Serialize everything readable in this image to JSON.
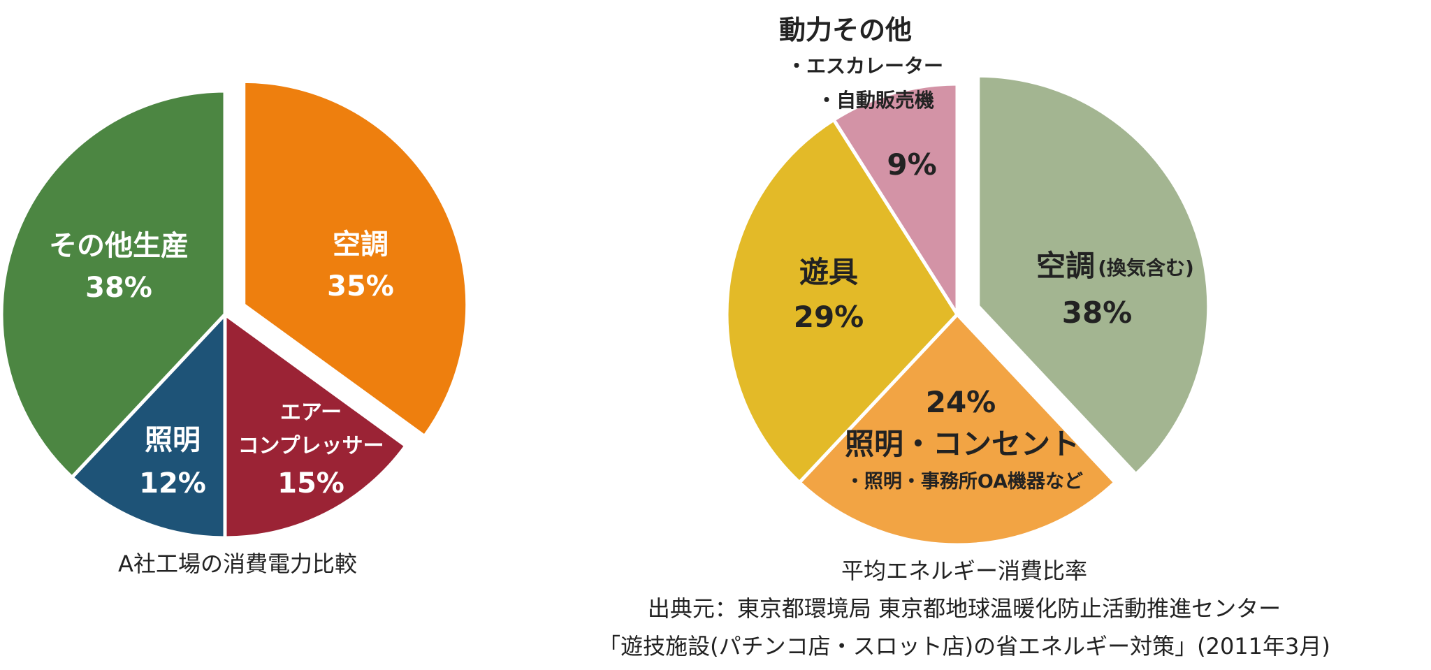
{
  "chart_data": [
    {
      "type": "pie",
      "caption": "A社工場の消費電力比較",
      "slices": [
        {
          "label": "空調",
          "value": 35,
          "value_text": "35%",
          "color": "#EE7F0E"
        },
        {
          "label": "エアー\nコンプレッサー",
          "value": 15,
          "value_text": "15%",
          "color": "#9B2335"
        },
        {
          "label": "照明",
          "value": 12,
          "value_text": "12%",
          "color": "#1E5377"
        },
        {
          "label": "その他生産",
          "value": 38,
          "value_text": "38%",
          "color": "#4C8642"
        }
      ]
    },
    {
      "type": "pie",
      "caption_lines": [
        "平均エネルギー消費比率",
        "出典元：東京都環境局 東京都地球温暖化防止活動推進センター",
        "「遊技施設(パチンコ店・スロット店)の省エネルギー対策」(2011年3月)"
      ],
      "slices": [
        {
          "label": "空調",
          "sublabel": "(換気含む)",
          "value": 38,
          "value_text": "38%",
          "color": "#A3B591"
        },
        {
          "label": "照明・コンセント",
          "sublabel": "・照明・事務所OA機器など",
          "value": 24,
          "value_text": "24%",
          "color": "#F2A444"
        },
        {
          "label": "遊具",
          "value": 29,
          "value_text": "29%",
          "color": "#E3BA28"
        },
        {
          "label": "動力その他",
          "sublabel_lines": [
            "・エスカレーター",
            "・自動販売機"
          ],
          "value": 9,
          "value_text": "9%",
          "color": "#D393A6"
        }
      ]
    }
  ]
}
